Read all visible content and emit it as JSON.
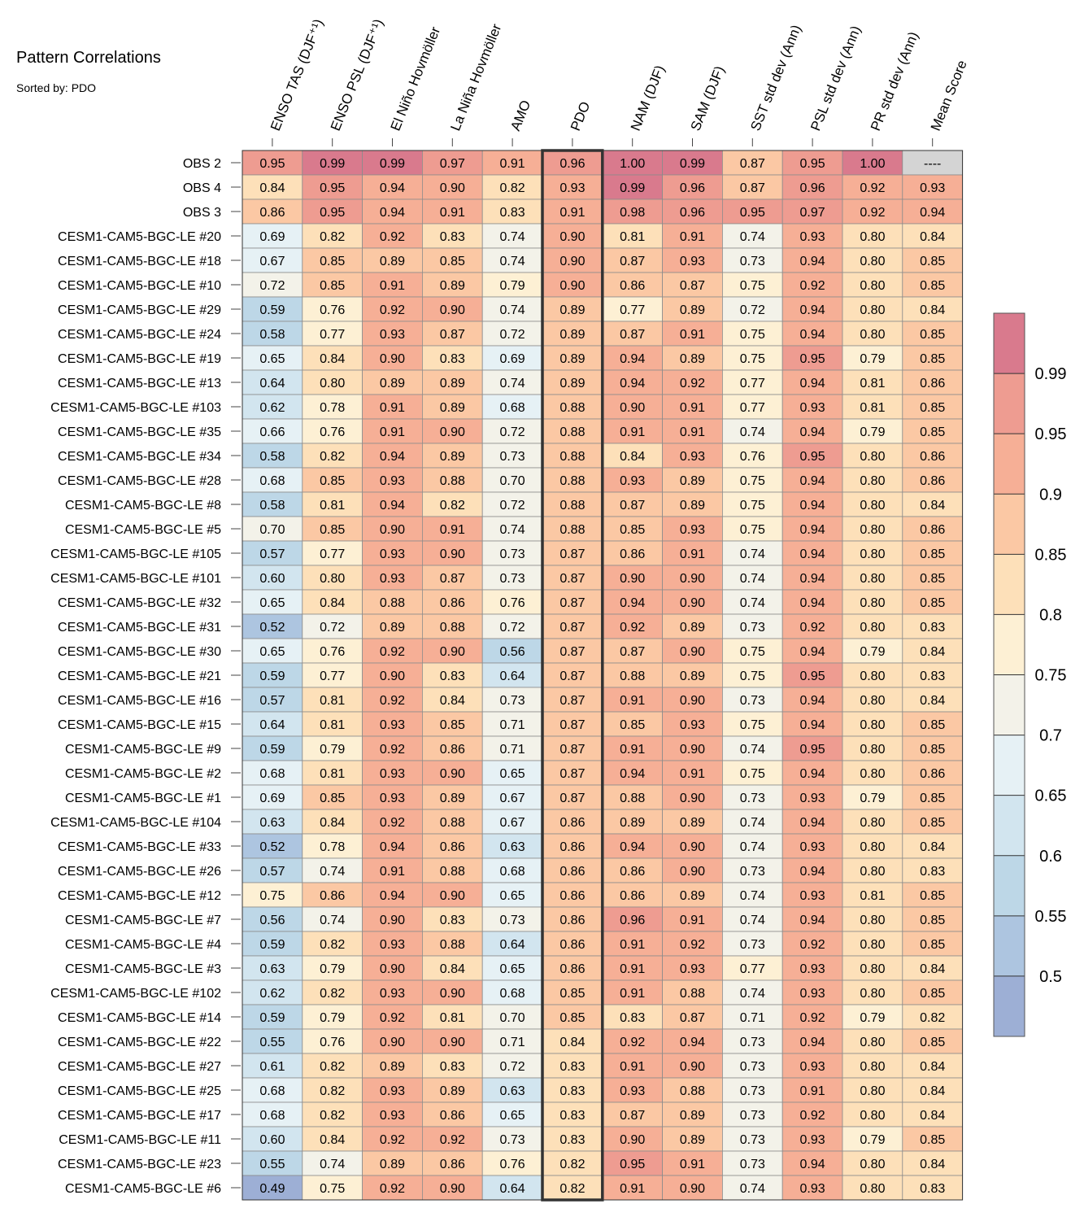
{
  "chart_data": {
    "type": "heatmap",
    "title": "Pattern Correlations",
    "subtitle": "Sorted by: PDO",
    "columns": [
      "ENSO TAS (DJF⁺¹)",
      "ENSO PSL (DJF⁺¹)",
      "El Niño Hovmöller",
      "La Niña Hovmöller",
      "AMO",
      "PDO",
      "NAM (DJF)",
      "SAM (DJF)",
      "SST std dev (Ann)",
      "PSL std dev (Ann)",
      "PR std dev (Ann)",
      "Mean Score"
    ],
    "highlighted_column": "PDO",
    "rows": [
      {
        "name": "OBS 2",
        "values": [
          "0.95",
          "0.99",
          "0.99",
          "0.97",
          "0.91",
          "0.96",
          "1.00",
          "0.99",
          "0.87",
          "0.95",
          "1.00",
          "----"
        ]
      },
      {
        "name": "OBS 4",
        "values": [
          "0.84",
          "0.95",
          "0.94",
          "0.90",
          "0.82",
          "0.93",
          "0.99",
          "0.96",
          "0.87",
          "0.96",
          "0.92",
          "0.93"
        ]
      },
      {
        "name": "OBS 3",
        "values": [
          "0.86",
          "0.95",
          "0.94",
          "0.91",
          "0.83",
          "0.91",
          "0.98",
          "0.96",
          "0.95",
          "0.97",
          "0.92",
          "0.94"
        ]
      },
      {
        "name": "CESM1-CAM5-BGC-LE #20",
        "values": [
          "0.69",
          "0.82",
          "0.92",
          "0.83",
          "0.74",
          "0.90",
          "0.81",
          "0.91",
          "0.74",
          "0.93",
          "0.80",
          "0.84"
        ]
      },
      {
        "name": "CESM1-CAM5-BGC-LE #18",
        "values": [
          "0.67",
          "0.85",
          "0.89",
          "0.85",
          "0.74",
          "0.90",
          "0.87",
          "0.93",
          "0.73",
          "0.94",
          "0.80",
          "0.85"
        ]
      },
      {
        "name": "CESM1-CAM5-BGC-LE #10",
        "values": [
          "0.72",
          "0.85",
          "0.91",
          "0.89",
          "0.79",
          "0.90",
          "0.86",
          "0.87",
          "0.75",
          "0.92",
          "0.80",
          "0.85"
        ]
      },
      {
        "name": "CESM1-CAM5-BGC-LE #29",
        "values": [
          "0.59",
          "0.76",
          "0.92",
          "0.90",
          "0.74",
          "0.89",
          "0.77",
          "0.89",
          "0.72",
          "0.94",
          "0.80",
          "0.84"
        ]
      },
      {
        "name": "CESM1-CAM5-BGC-LE #24",
        "values": [
          "0.58",
          "0.77",
          "0.93",
          "0.87",
          "0.72",
          "0.89",
          "0.87",
          "0.91",
          "0.75",
          "0.94",
          "0.80",
          "0.85"
        ]
      },
      {
        "name": "CESM1-CAM5-BGC-LE #19",
        "values": [
          "0.65",
          "0.84",
          "0.90",
          "0.83",
          "0.69",
          "0.89",
          "0.94",
          "0.89",
          "0.75",
          "0.95",
          "0.79",
          "0.85"
        ]
      },
      {
        "name": "CESM1-CAM5-BGC-LE #13",
        "values": [
          "0.64",
          "0.80",
          "0.89",
          "0.89",
          "0.74",
          "0.89",
          "0.94",
          "0.92",
          "0.77",
          "0.94",
          "0.81",
          "0.86"
        ]
      },
      {
        "name": "CESM1-CAM5-BGC-LE #103",
        "values": [
          "0.62",
          "0.78",
          "0.91",
          "0.89",
          "0.68",
          "0.88",
          "0.90",
          "0.91",
          "0.77",
          "0.93",
          "0.81",
          "0.85"
        ]
      },
      {
        "name": "CESM1-CAM5-BGC-LE #35",
        "values": [
          "0.66",
          "0.76",
          "0.91",
          "0.90",
          "0.72",
          "0.88",
          "0.91",
          "0.91",
          "0.74",
          "0.94",
          "0.79",
          "0.85"
        ]
      },
      {
        "name": "CESM1-CAM5-BGC-LE #34",
        "values": [
          "0.58",
          "0.82",
          "0.94",
          "0.89",
          "0.73",
          "0.88",
          "0.84",
          "0.93",
          "0.76",
          "0.95",
          "0.80",
          "0.86"
        ]
      },
      {
        "name": "CESM1-CAM5-BGC-LE #28",
        "values": [
          "0.68",
          "0.85",
          "0.93",
          "0.88",
          "0.70",
          "0.88",
          "0.93",
          "0.89",
          "0.75",
          "0.94",
          "0.80",
          "0.86"
        ]
      },
      {
        "name": "CESM1-CAM5-BGC-LE #8",
        "values": [
          "0.58",
          "0.81",
          "0.94",
          "0.82",
          "0.72",
          "0.88",
          "0.87",
          "0.89",
          "0.75",
          "0.94",
          "0.80",
          "0.84"
        ]
      },
      {
        "name": "CESM1-CAM5-BGC-LE #5",
        "values": [
          "0.70",
          "0.85",
          "0.90",
          "0.91",
          "0.74",
          "0.88",
          "0.85",
          "0.93",
          "0.75",
          "0.94",
          "0.80",
          "0.86"
        ]
      },
      {
        "name": "CESM1-CAM5-BGC-LE #105",
        "values": [
          "0.57",
          "0.77",
          "0.93",
          "0.90",
          "0.73",
          "0.87",
          "0.86",
          "0.91",
          "0.74",
          "0.94",
          "0.80",
          "0.85"
        ]
      },
      {
        "name": "CESM1-CAM5-BGC-LE #101",
        "values": [
          "0.60",
          "0.80",
          "0.93",
          "0.87",
          "0.73",
          "0.87",
          "0.90",
          "0.90",
          "0.74",
          "0.94",
          "0.80",
          "0.85"
        ]
      },
      {
        "name": "CESM1-CAM5-BGC-LE #32",
        "values": [
          "0.65",
          "0.84",
          "0.88",
          "0.86",
          "0.76",
          "0.87",
          "0.94",
          "0.90",
          "0.74",
          "0.94",
          "0.80",
          "0.85"
        ]
      },
      {
        "name": "CESM1-CAM5-BGC-LE #31",
        "values": [
          "0.52",
          "0.72",
          "0.89",
          "0.88",
          "0.72",
          "0.87",
          "0.92",
          "0.89",
          "0.73",
          "0.92",
          "0.80",
          "0.83"
        ]
      },
      {
        "name": "CESM1-CAM5-BGC-LE #30",
        "values": [
          "0.65",
          "0.76",
          "0.92",
          "0.90",
          "0.56",
          "0.87",
          "0.87",
          "0.90",
          "0.75",
          "0.94",
          "0.79",
          "0.84"
        ]
      },
      {
        "name": "CESM1-CAM5-BGC-LE #21",
        "values": [
          "0.59",
          "0.77",
          "0.90",
          "0.83",
          "0.64",
          "0.87",
          "0.88",
          "0.89",
          "0.75",
          "0.95",
          "0.80",
          "0.83"
        ]
      },
      {
        "name": "CESM1-CAM5-BGC-LE #16",
        "values": [
          "0.57",
          "0.81",
          "0.92",
          "0.84",
          "0.73",
          "0.87",
          "0.91",
          "0.90",
          "0.73",
          "0.94",
          "0.80",
          "0.84"
        ]
      },
      {
        "name": "CESM1-CAM5-BGC-LE #15",
        "values": [
          "0.64",
          "0.81",
          "0.93",
          "0.85",
          "0.71",
          "0.87",
          "0.85",
          "0.93",
          "0.75",
          "0.94",
          "0.80",
          "0.85"
        ]
      },
      {
        "name": "CESM1-CAM5-BGC-LE #9",
        "values": [
          "0.59",
          "0.79",
          "0.92",
          "0.86",
          "0.71",
          "0.87",
          "0.91",
          "0.90",
          "0.74",
          "0.95",
          "0.80",
          "0.85"
        ]
      },
      {
        "name": "CESM1-CAM5-BGC-LE #2",
        "values": [
          "0.68",
          "0.81",
          "0.93",
          "0.90",
          "0.65",
          "0.87",
          "0.94",
          "0.91",
          "0.75",
          "0.94",
          "0.80",
          "0.86"
        ]
      },
      {
        "name": "CESM1-CAM5-BGC-LE #1",
        "values": [
          "0.69",
          "0.85",
          "0.93",
          "0.89",
          "0.67",
          "0.87",
          "0.88",
          "0.90",
          "0.73",
          "0.93",
          "0.79",
          "0.85"
        ]
      },
      {
        "name": "CESM1-CAM5-BGC-LE #104",
        "values": [
          "0.63",
          "0.84",
          "0.92",
          "0.88",
          "0.67",
          "0.86",
          "0.89",
          "0.89",
          "0.74",
          "0.94",
          "0.80",
          "0.85"
        ]
      },
      {
        "name": "CESM1-CAM5-BGC-LE #33",
        "values": [
          "0.52",
          "0.78",
          "0.94",
          "0.86",
          "0.63",
          "0.86",
          "0.94",
          "0.90",
          "0.74",
          "0.93",
          "0.80",
          "0.84"
        ]
      },
      {
        "name": "CESM1-CAM5-BGC-LE #26",
        "values": [
          "0.57",
          "0.74",
          "0.91",
          "0.88",
          "0.68",
          "0.86",
          "0.86",
          "0.90",
          "0.73",
          "0.94",
          "0.80",
          "0.83"
        ]
      },
      {
        "name": "CESM1-CAM5-BGC-LE #12",
        "values": [
          "0.75",
          "0.86",
          "0.94",
          "0.90",
          "0.65",
          "0.86",
          "0.86",
          "0.89",
          "0.74",
          "0.93",
          "0.81",
          "0.85"
        ]
      },
      {
        "name": "CESM1-CAM5-BGC-LE #7",
        "values": [
          "0.56",
          "0.74",
          "0.90",
          "0.83",
          "0.73",
          "0.86",
          "0.96",
          "0.91",
          "0.74",
          "0.94",
          "0.80",
          "0.85"
        ]
      },
      {
        "name": "CESM1-CAM5-BGC-LE #4",
        "values": [
          "0.59",
          "0.82",
          "0.93",
          "0.88",
          "0.64",
          "0.86",
          "0.91",
          "0.92",
          "0.73",
          "0.92",
          "0.80",
          "0.85"
        ]
      },
      {
        "name": "CESM1-CAM5-BGC-LE #3",
        "values": [
          "0.63",
          "0.79",
          "0.90",
          "0.84",
          "0.65",
          "0.86",
          "0.91",
          "0.93",
          "0.77",
          "0.93",
          "0.80",
          "0.84"
        ]
      },
      {
        "name": "CESM1-CAM5-BGC-LE #102",
        "values": [
          "0.62",
          "0.82",
          "0.93",
          "0.90",
          "0.68",
          "0.85",
          "0.91",
          "0.88",
          "0.74",
          "0.93",
          "0.80",
          "0.85"
        ]
      },
      {
        "name": "CESM1-CAM5-BGC-LE #14",
        "values": [
          "0.59",
          "0.79",
          "0.92",
          "0.81",
          "0.70",
          "0.85",
          "0.83",
          "0.87",
          "0.71",
          "0.92",
          "0.79",
          "0.82"
        ]
      },
      {
        "name": "CESM1-CAM5-BGC-LE #22",
        "values": [
          "0.55",
          "0.76",
          "0.90",
          "0.90",
          "0.71",
          "0.84",
          "0.92",
          "0.94",
          "0.73",
          "0.94",
          "0.80",
          "0.85"
        ]
      },
      {
        "name": "CESM1-CAM5-BGC-LE #27",
        "values": [
          "0.61",
          "0.82",
          "0.89",
          "0.83",
          "0.72",
          "0.83",
          "0.91",
          "0.90",
          "0.73",
          "0.93",
          "0.80",
          "0.84"
        ]
      },
      {
        "name": "CESM1-CAM5-BGC-LE #25",
        "values": [
          "0.68",
          "0.82",
          "0.93",
          "0.89",
          "0.63",
          "0.83",
          "0.93",
          "0.88",
          "0.73",
          "0.91",
          "0.80",
          "0.84"
        ]
      },
      {
        "name": "CESM1-CAM5-BGC-LE #17",
        "values": [
          "0.68",
          "0.82",
          "0.93",
          "0.86",
          "0.65",
          "0.83",
          "0.87",
          "0.89",
          "0.73",
          "0.92",
          "0.80",
          "0.84"
        ]
      },
      {
        "name": "CESM1-CAM5-BGC-LE #11",
        "values": [
          "0.60",
          "0.84",
          "0.92",
          "0.92",
          "0.73",
          "0.83",
          "0.90",
          "0.89",
          "0.73",
          "0.93",
          "0.79",
          "0.85"
        ]
      },
      {
        "name": "CESM1-CAM5-BGC-LE #23",
        "values": [
          "0.55",
          "0.74",
          "0.89",
          "0.86",
          "0.76",
          "0.82",
          "0.95",
          "0.91",
          "0.73",
          "0.94",
          "0.80",
          "0.84"
        ]
      },
      {
        "name": "CESM1-CAM5-BGC-LE #6",
        "values": [
          "0.49",
          "0.75",
          "0.92",
          "0.90",
          "0.64",
          "0.82",
          "0.91",
          "0.90",
          "0.74",
          "0.93",
          "0.80",
          "0.83"
        ]
      }
    ],
    "colorbar": {
      "levels": [
        0.5,
        0.55,
        0.6,
        0.65,
        0.7,
        0.75,
        0.8,
        0.85,
        0.9,
        0.95,
        0.99
      ],
      "labels": [
        "0.5",
        "0.55",
        "0.6",
        "0.65",
        "0.7",
        "0.75",
        "0.8",
        "0.85",
        "0.9",
        "0.95",
        "0.99"
      ],
      "colors": [
        "#9dafd5",
        "#adc5e0",
        "#bdd7e7",
        "#d2e5ef",
        "#e6f1f5",
        "#f3f2e9",
        "#fdf0d4",
        "#fde0b9",
        "#fbc8a4",
        "#f6af96",
        "#ee9c91",
        "#d97a8d"
      ],
      "missing_color": "#d4d4d4"
    }
  }
}
